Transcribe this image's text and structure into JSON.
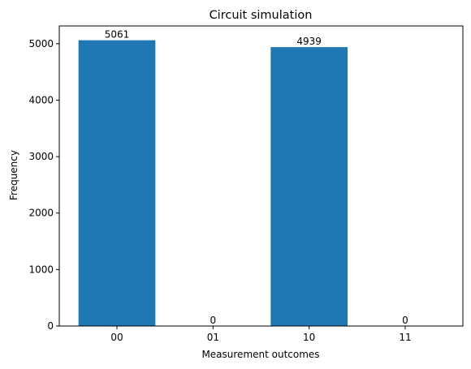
{
  "chart_data": {
    "type": "bar",
    "title": "Circuit simulation",
    "x_label": "Measurement outcomes",
    "y_label": "Frequency",
    "categories": [
      "00",
      "01",
      "10",
      "11"
    ],
    "values": [
      5061,
      0,
      4939,
      0
    ],
    "color": "#1f77b4",
    "ylim": [
      0,
      5314.05
    ],
    "yticks": [
      0,
      1000,
      2000,
      3000,
      4000,
      5000
    ],
    "grid": false
  }
}
